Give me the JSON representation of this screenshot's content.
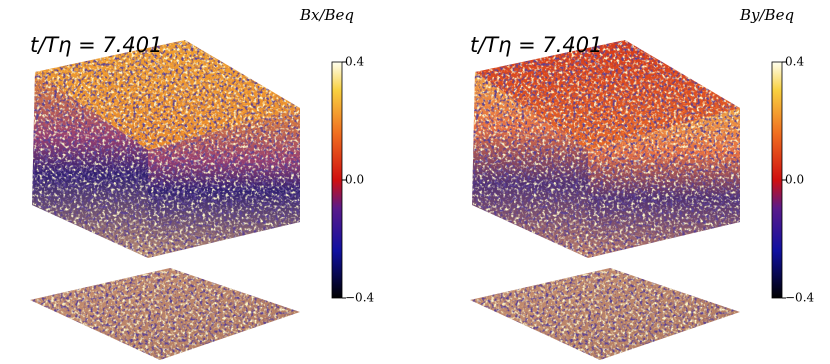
{
  "panels": [
    {
      "time_label": "t/Tη = 7.401",
      "colorbar": {
        "label": "Bx/Beq",
        "lim": [
          -0.4,
          0.4
        ],
        "ticks": [
          {
            "value": 0.4,
            "label": "0.4"
          },
          {
            "value": 0,
            "label": "0.0"
          },
          {
            "value": -0.4,
            "label": "−0.4"
          }
        ]
      }
    },
    {
      "time_label": "t/Tη = 7.401",
      "colorbar": {
        "label": "By/Beq",
        "lim": [
          -0.4,
          0.4
        ],
        "ticks": [
          {
            "value": 0.4,
            "label": "0.4"
          },
          {
            "value": 0,
            "label": "0.0"
          },
          {
            "value": -0.4,
            "label": "−0.4"
          }
        ]
      }
    }
  ]
}
